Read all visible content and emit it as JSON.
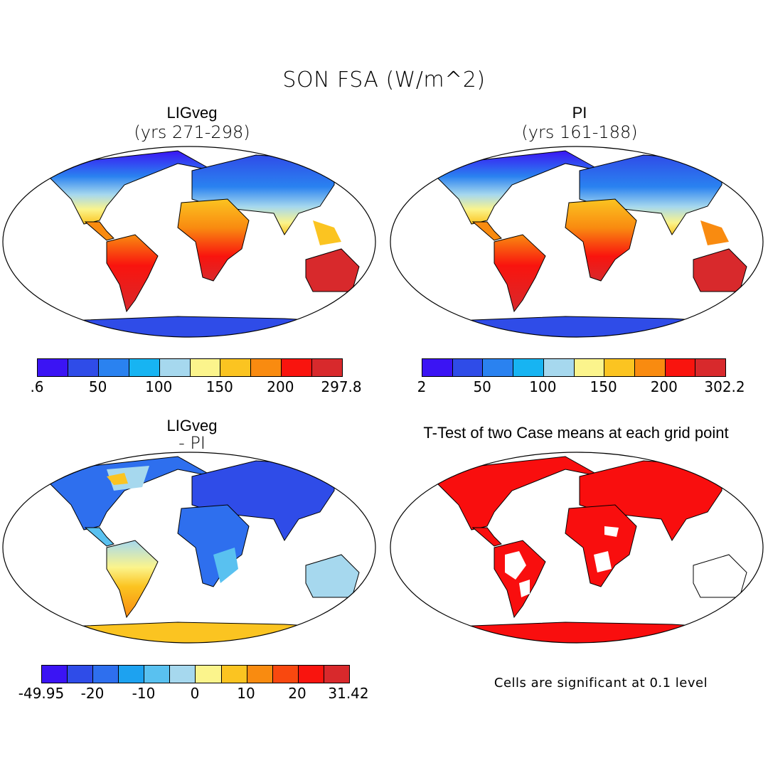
{
  "title": "SON FSA (W/m^2)",
  "panels": [
    {
      "id": "ligveg",
      "title": "LIGveg",
      "subtitle": "(yrs 271-298)",
      "colorbar": {
        "colors": [
          "#3b14f4",
          "#2f4ce8",
          "#2a82f0",
          "#17b4f2",
          "#a6d8ee",
          "#fbf48c",
          "#fbc421",
          "#f98b10",
          "#f9140e",
          "#d8292c"
        ],
        "tick_labels": [
          ".6",
          "50",
          "100",
          "150",
          "200",
          "297.8"
        ]
      }
    },
    {
      "id": "pi",
      "title": "PI",
      "subtitle": "(yrs 161-188)",
      "colorbar": {
        "colors": [
          "#3b14f4",
          "#2f4ce8",
          "#2a82f0",
          "#17b4f2",
          "#a6d8ee",
          "#fbf48c",
          "#fbc421",
          "#f98b10",
          "#f9140e",
          "#d8292c"
        ],
        "tick_labels": [
          "2",
          "50",
          "100",
          "150",
          "200",
          "302.2"
        ]
      }
    },
    {
      "id": "diff",
      "title": "LIGveg",
      "subtitle": "- PI",
      "colorbar": {
        "colors": [
          "#3b14f4",
          "#2f4ce8",
          "#2e6fee",
          "#1da2f0",
          "#59c1f0",
          "#a6d8ee",
          "#fbf48c",
          "#fbc421",
          "#f98b10",
          "#f9480f",
          "#f9140e",
          "#d8292c"
        ],
        "tick_labels": [
          "-49.95",
          "-20",
          "-10",
          "0",
          "10",
          "20",
          "31.42"
        ]
      }
    },
    {
      "id": "ttest",
      "title": "T-Test of two Case means at each grid point",
      "note": "Cells are significant at 0.1 level"
    }
  ]
}
